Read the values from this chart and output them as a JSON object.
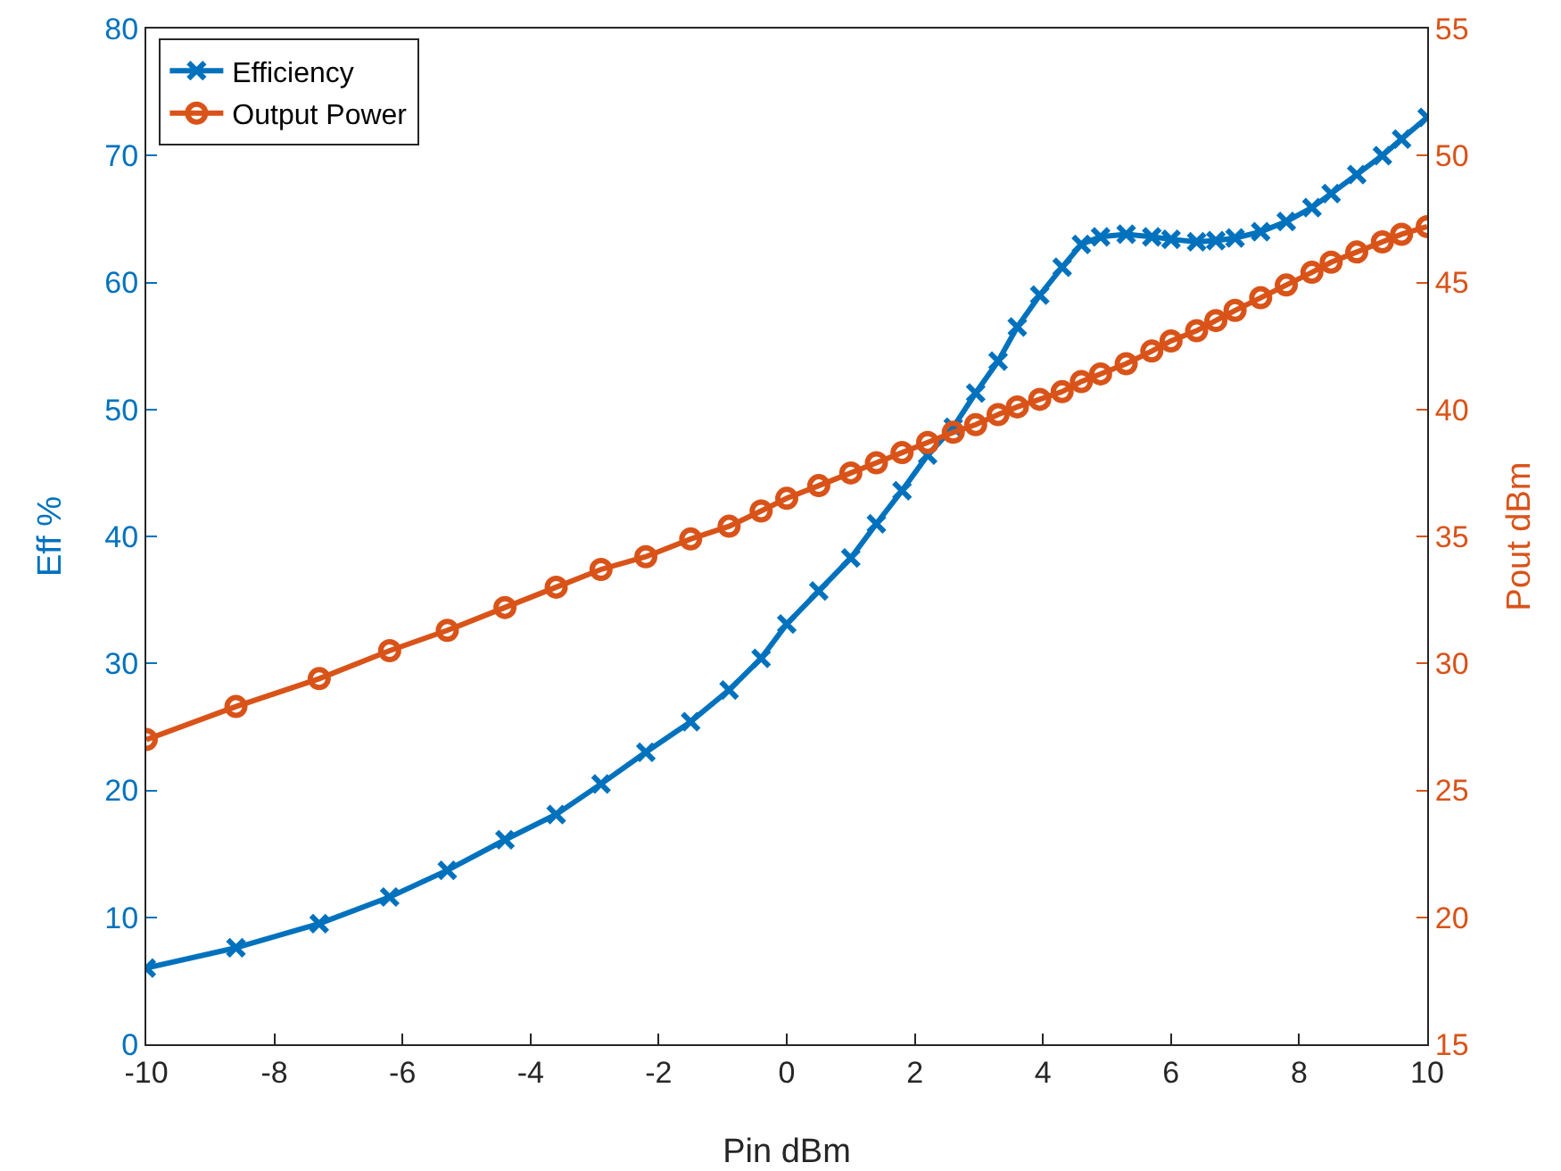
{
  "chart_data": {
    "type": "line",
    "xlabel": "Pin dBm",
    "ylabel": "Eff %",
    "y2label": "Pout dBm",
    "x": [
      -10,
      -8.6,
      -7.3,
      -6.2,
      -5.3,
      -4.4,
      -3.6,
      -2.9,
      -2.2,
      -1.5,
      -0.9,
      -0.4,
      0,
      0.5,
      1,
      1.4,
      1.8,
      2.2,
      2.6,
      2.95,
      3.3,
      3.6,
      3.95,
      4.3,
      4.6,
      4.9,
      5.3,
      5.7,
      6,
      6.4,
      6.7,
      7,
      7.4,
      7.8,
      8.2,
      8.5,
      8.9,
      9.3,
      9.6,
      10
    ],
    "series": [
      {
        "name": "Efficiency",
        "color": "#0072bd",
        "marker": "cross",
        "axis": "y",
        "values": [
          6,
          7.6,
          9.5,
          11.6,
          13.7,
          16.1,
          18.1,
          20.5,
          23,
          25.4,
          27.9,
          30.4,
          33.1,
          35.7,
          38.3,
          41,
          43.6,
          46.4,
          48.6,
          51.3,
          53.8,
          56.5,
          59,
          61.2,
          63,
          63.6,
          63.8,
          63.6,
          63.4,
          63.2,
          63.3,
          63.5,
          64,
          64.8,
          65.9,
          67,
          68.5,
          70,
          71.3,
          73
        ]
      },
      {
        "name": "Output Power",
        "color": "#d95319",
        "marker": "circle",
        "axis": "y2",
        "values": [
          27,
          28.3,
          29.4,
          30.5,
          31.3,
          32.2,
          33,
          33.7,
          34.2,
          34.9,
          35.4,
          36,
          36.5,
          37,
          37.5,
          37.9,
          38.3,
          38.7,
          39.1,
          39.4,
          39.8,
          40.1,
          40.4,
          40.7,
          41.1,
          41.4,
          41.8,
          42.3,
          42.7,
          43.1,
          43.5,
          43.9,
          44.4,
          44.9,
          45.4,
          45.8,
          46.2,
          46.6,
          46.9,
          47.2
        ]
      }
    ],
    "xlim": [
      -10,
      10
    ],
    "xticks": [
      -10,
      -8,
      -6,
      -4,
      -2,
      0,
      2,
      4,
      6,
      8,
      10
    ],
    "ylim": [
      0,
      80
    ],
    "yticks": [
      0,
      10,
      20,
      30,
      40,
      50,
      60,
      70,
      80
    ],
    "y2lim": [
      15,
      55
    ],
    "y2ticks": [
      15,
      20,
      25,
      30,
      35,
      40,
      45,
      50,
      55
    ],
    "grid": false,
    "legend": "top left",
    "line_style": "solid"
  }
}
